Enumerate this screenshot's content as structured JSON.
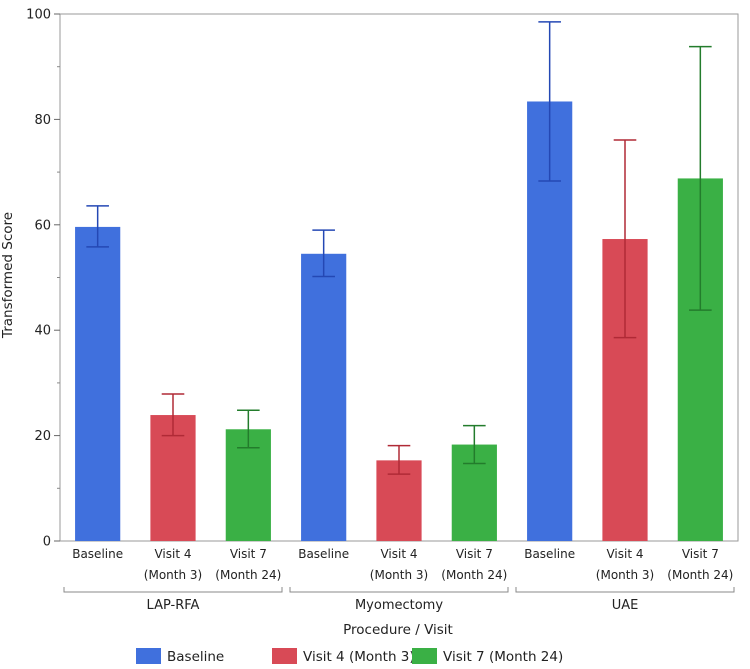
{
  "chart_data": {
    "type": "bar",
    "title": "",
    "xlabel": "Procedure / Visit",
    "ylabel": "Transformed Score",
    "ylim": [
      0,
      100
    ],
    "yticks": [
      0,
      20,
      40,
      60,
      80,
      100
    ],
    "groups": [
      {
        "name": "LAP-RFA",
        "bars": [
          {
            "series": "Baseline",
            "label_lines": [
              "Baseline"
            ],
            "value": 59.6,
            "err_low": 55.8,
            "err_high": 63.6
          },
          {
            "series": "Visit 4 (Month 3)",
            "label_lines": [
              "Visit 4",
              "(Month 3)"
            ],
            "value": 23.9,
            "err_low": 20.0,
            "err_high": 27.9
          },
          {
            "series": "Visit 7 (Month 24)",
            "label_lines": [
              "Visit 7",
              "(Month 24)"
            ],
            "value": 21.2,
            "err_low": 17.7,
            "err_high": 24.8
          }
        ]
      },
      {
        "name": "Myomectomy",
        "bars": [
          {
            "series": "Baseline",
            "label_lines": [
              "Baseline"
            ],
            "value": 54.5,
            "err_low": 50.2,
            "err_high": 59.0
          },
          {
            "series": "Visit 4 (Month 3)",
            "label_lines": [
              "Visit 4",
              "(Month 3)"
            ],
            "value": 15.3,
            "err_low": 12.7,
            "err_high": 18.1
          },
          {
            "series": "Visit 7 (Month 24)",
            "label_lines": [
              "Visit 7",
              "(Month 24)"
            ],
            "value": 18.3,
            "err_low": 14.7,
            "err_high": 21.9
          }
        ]
      },
      {
        "name": "UAE",
        "bars": [
          {
            "series": "Baseline",
            "label_lines": [
              "Baseline"
            ],
            "value": 83.4,
            "err_low": 68.3,
            "err_high": 98.5
          },
          {
            "series": "Visit 4 (Month 3)",
            "label_lines": [
              "Visit 4",
              "(Month 3)"
            ],
            "value": 57.3,
            "err_low": 38.6,
            "err_high": 76.1
          },
          {
            "series": "Visit 7 (Month 24)",
            "label_lines": [
              "Visit 7",
              "(Month 24)"
            ],
            "value": 68.8,
            "err_low": 43.8,
            "err_high": 93.8
          }
        ]
      }
    ],
    "legend": {
      "position": "bottom",
      "items": [
        {
          "name": "Baseline",
          "color": "#4070dd",
          "error_color": "#2448b4"
        },
        {
          "name": "Visit 4 (Month 3)",
          "color": "#d84a56",
          "error_color": "#b02a36"
        },
        {
          "name": "Visit 7 (Month 24)",
          "color": "#3ab045",
          "error_color": "#237c2c"
        }
      ]
    }
  }
}
